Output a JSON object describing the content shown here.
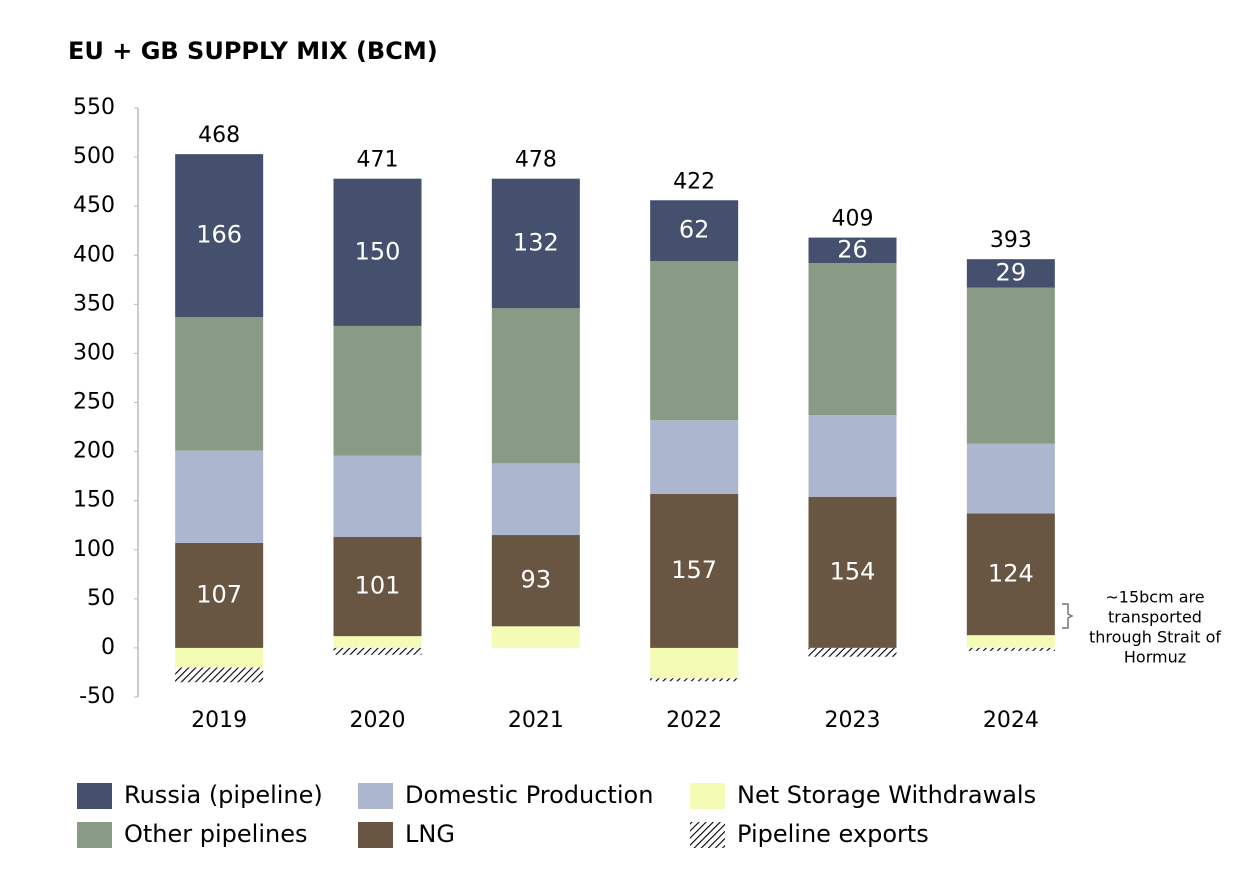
{
  "chart_data": {
    "type": "stacked_bar",
    "title": "EU + GB SUPPLY MIX (BCM)",
    "categories": [
      "2019",
      "2020",
      "2021",
      "2022",
      "2023",
      "2024"
    ],
    "series": [
      {
        "name": "Net Storage Withdrawals",
        "color": "#f4fbb4",
        "values": [
          -20,
          12,
          22,
          -31,
          null,
          13
        ]
      },
      {
        "name": "LNG",
        "color": "#695642",
        "values": [
          107,
          101,
          93,
          157,
          154,
          124
        ],
        "show_labels": true
      },
      {
        "name": "Domestic Production",
        "color": "#adb6cf",
        "values": [
          94,
          83,
          73,
          75,
          83,
          71
        ]
      },
      {
        "name": "Other pipelines",
        "color": "#8a9b85",
        "values": [
          136,
          132,
          158,
          162,
          155,
          159
        ]
      },
      {
        "name": "Russia (pipeline)",
        "color": "#44506e",
        "values": [
          166,
          150,
          132,
          62,
          26,
          29
        ],
        "show_labels": true
      },
      {
        "name": "Pipeline exports",
        "color": "#000000",
        "pattern": "hatch",
        "values": [
          -15,
          -7,
          null,
          -3,
          -9,
          -3
        ]
      }
    ],
    "totals": [
      468,
      471,
      478,
      422,
      409,
      393
    ],
    "annotation": [
      "~15bcm are",
      "transported",
      "through Strait of",
      "Hormuz"
    ],
    "ylim": [
      -50,
      550
    ],
    "yticks": [
      -50,
      0,
      50,
      100,
      150,
      200,
      250,
      300,
      350,
      400,
      450,
      500,
      550
    ],
    "grid": false
  }
}
